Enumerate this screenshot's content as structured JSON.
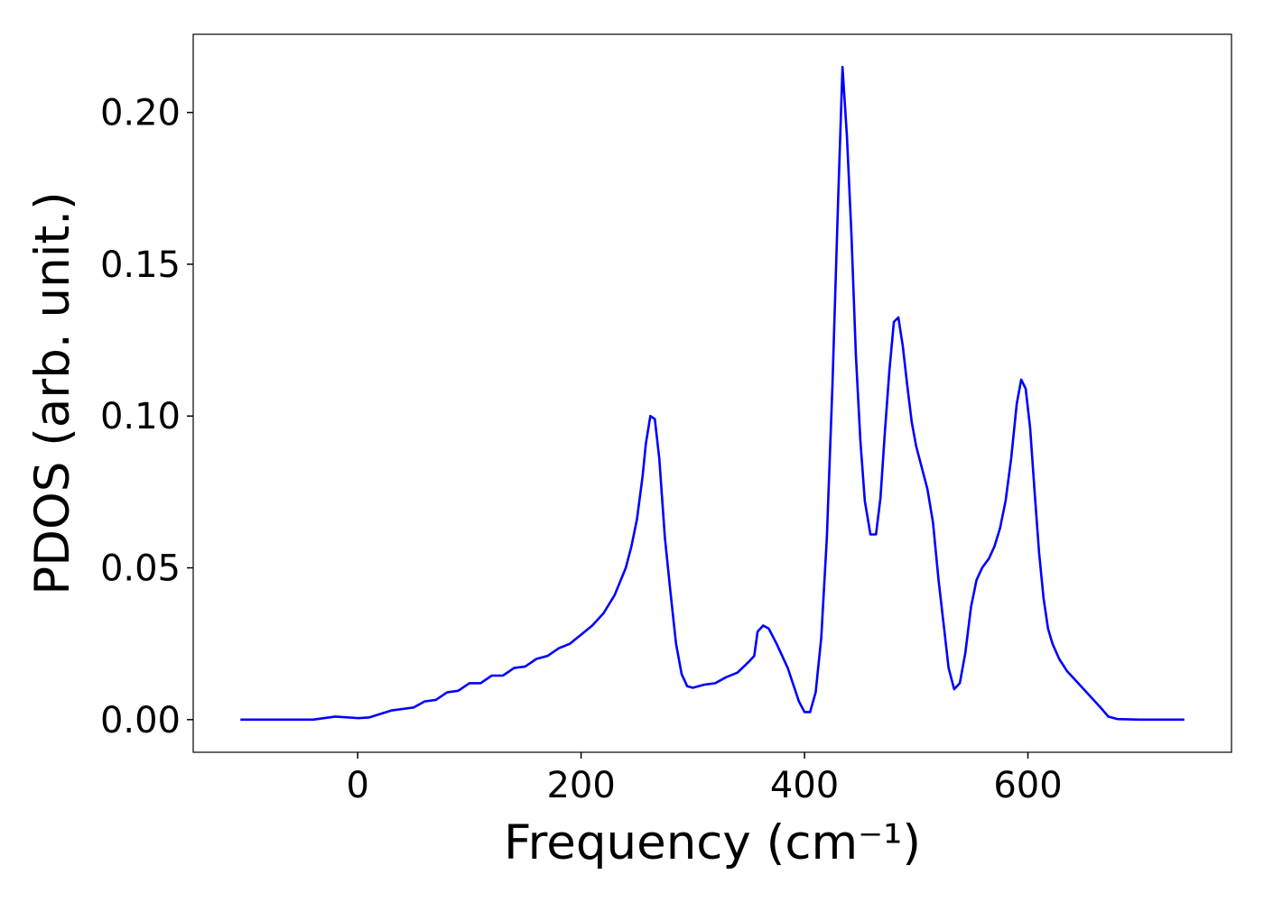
{
  "chart_data": {
    "type": "line",
    "xlabel": "Frequency (cm⁻¹)",
    "ylabel": "PDOS (arb. unit.)",
    "x": [
      -105,
      -40,
      -20,
      0,
      10,
      30,
      50,
      60,
      70,
      80,
      90,
      100,
      110,
      120,
      130,
      140,
      150,
      160,
      170,
      180,
      190,
      200,
      210,
      220,
      230,
      240,
      245,
      250,
      255,
      258,
      262,
      266,
      270,
      275,
      280,
      285,
      290,
      295,
      300,
      310,
      320,
      330,
      340,
      350,
      355,
      358,
      363,
      368,
      375,
      385,
      395,
      400,
      405,
      410,
      415,
      420,
      425,
      430,
      434,
      438,
      442,
      446,
      450,
      454,
      459,
      464,
      468,
      472,
      476,
      480,
      484,
      488,
      492,
      496,
      500,
      505,
      510,
      515,
      520,
      525,
      529,
      534,
      539,
      544,
      549,
      554,
      559,
      565,
      570,
      575,
      580,
      585,
      590,
      594,
      598,
      602,
      606,
      610,
      614,
      618,
      622,
      628,
      635,
      645,
      655,
      665,
      672,
      680,
      700,
      740
    ],
    "series": [
      {
        "name": "PDOS",
        "color": "#0000ff",
        "values": [
          0,
          0,
          0.001,
          0.0005,
          0.0007,
          0.003,
          0.004,
          0.006,
          0.0065,
          0.009,
          0.0095,
          0.012,
          0.012,
          0.0145,
          0.0145,
          0.017,
          0.0175,
          0.02,
          0.021,
          0.0235,
          0.025,
          0.028,
          0.031,
          0.035,
          0.041,
          0.05,
          0.057,
          0.066,
          0.08,
          0.091,
          0.1,
          0.099,
          0.086,
          0.06,
          0.042,
          0.025,
          0.015,
          0.011,
          0.0105,
          0.0115,
          0.012,
          0.014,
          0.0155,
          0.019,
          0.021,
          0.029,
          0.031,
          0.03,
          0.025,
          0.017,
          0.006,
          0.0025,
          0.0025,
          0.009,
          0.027,
          0.06,
          0.11,
          0.17,
          0.215,
          0.192,
          0.16,
          0.12,
          0.092,
          0.072,
          0.061,
          0.061,
          0.073,
          0.095,
          0.115,
          0.131,
          0.1325,
          0.123,
          0.11,
          0.098,
          0.09,
          0.083,
          0.076,
          0.065,
          0.046,
          0.03,
          0.017,
          0.01,
          0.012,
          0.022,
          0.037,
          0.046,
          0.05,
          0.053,
          0.057,
          0.063,
          0.072,
          0.086,
          0.104,
          0.112,
          0.109,
          0.096,
          0.075,
          0.055,
          0.04,
          0.03,
          0.025,
          0.02,
          0.016,
          0.012,
          0.008,
          0.004,
          0.001,
          0.0002,
          0,
          0
        ]
      }
    ],
    "xlim": [
      -147.25,
      782.25
    ],
    "xticks": [
      0,
      200,
      400,
      600
    ],
    "ylim": [
      -0.01075,
      0.22575
    ],
    "yticks": [
      {
        "value": 0,
        "label": "0.00"
      },
      {
        "value": 0.05,
        "label": "0.05"
      },
      {
        "value": 0.1,
        "label": "0.10"
      },
      {
        "value": 0.15,
        "label": "0.15"
      },
      {
        "value": 0.2,
        "label": "0.20"
      }
    ],
    "grid": false
  }
}
